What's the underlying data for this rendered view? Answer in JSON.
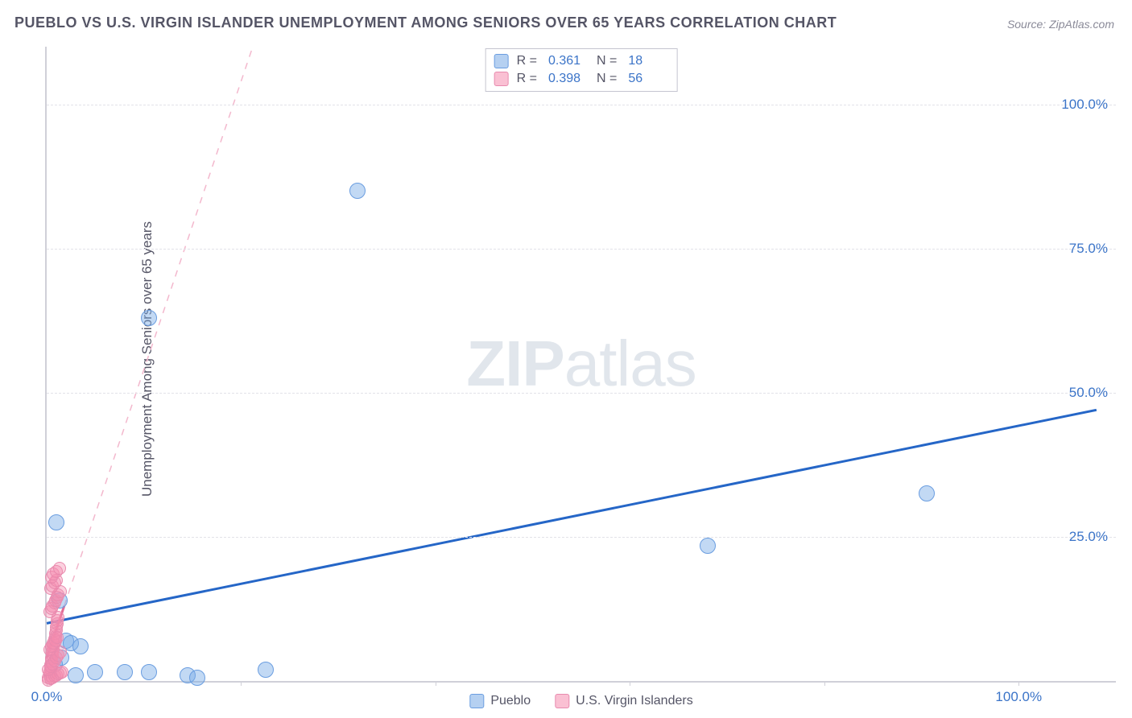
{
  "title": "PUEBLO VS U.S. VIRGIN ISLANDER UNEMPLOYMENT AMONG SENIORS OVER 65 YEARS CORRELATION CHART",
  "source": "Source: ZipAtlas.com",
  "ylabel": "Unemployment Among Seniors over 65 years",
  "watermark_bold": "ZIP",
  "watermark_light": "atlas",
  "chart": {
    "type": "scatter",
    "background_color": "#ffffff",
    "grid_color": "#e2e2e8",
    "axis_color": "#d0d0d8",
    "tick_color": "#3b74c8",
    "label_color": "#555566",
    "title_fontsize": 18,
    "label_fontsize": 17,
    "tick_fontsize": 17,
    "xlim": [
      0,
      110
    ],
    "ylim": [
      0,
      110
    ],
    "yticks": [
      {
        "value": 25,
        "label": "25.0%"
      },
      {
        "value": 50,
        "label": "50.0%"
      },
      {
        "value": 75,
        "label": "75.0%"
      },
      {
        "value": 100,
        "label": "100.0%"
      }
    ],
    "xticks": [
      {
        "value": 0,
        "label": "0.0%"
      },
      {
        "value": 20,
        "label": ""
      },
      {
        "value": 40,
        "label": ""
      },
      {
        "value": 60,
        "label": ""
      },
      {
        "value": 80,
        "label": ""
      },
      {
        "value": 100,
        "label": "100.0%"
      }
    ],
    "series": [
      {
        "name": "Pueblo",
        "color_fill": "rgba(120,170,230,0.45)",
        "color_stroke": "#6a9de0",
        "marker_radius": 10,
        "points": [
          {
            "x": 1.0,
            "y": 27.5
          },
          {
            "x": 1.3,
            "y": 14.0
          },
          {
            "x": 2.0,
            "y": 7.0
          },
          {
            "x": 2.5,
            "y": 6.5
          },
          {
            "x": 3.0,
            "y": 1.0
          },
          {
            "x": 3.5,
            "y": 6.0
          },
          {
            "x": 5.0,
            "y": 1.5
          },
          {
            "x": 8.0,
            "y": 1.5
          },
          {
            "x": 10.5,
            "y": 1.5
          },
          {
            "x": 14.5,
            "y": 1.0
          },
          {
            "x": 15.5,
            "y": 0.5
          },
          {
            "x": 22.5,
            "y": 2.0
          },
          {
            "x": 10.5,
            "y": 63.0
          },
          {
            "x": 32.0,
            "y": 85.0
          },
          {
            "x": 68.0,
            "y": 23.5
          },
          {
            "x": 90.5,
            "y": 32.5
          },
          {
            "x": 1.5,
            "y": 4.0
          },
          {
            "x": 0.8,
            "y": 3.0
          }
        ],
        "trend": {
          "style": "solid",
          "color": "#2566c7",
          "width": 3,
          "x1": 0,
          "y1": 10.0,
          "x2": 108,
          "y2": 47.0
        }
      },
      {
        "name": "U.S. Virgin Islanders",
        "color_fill": "rgba(245,140,175,0.40)",
        "color_stroke": "#e88aae",
        "marker_radius": 8,
        "points": [
          {
            "x": 0.2,
            "y": 0.5
          },
          {
            "x": 0.3,
            "y": 1.0
          },
          {
            "x": 0.3,
            "y": 1.6
          },
          {
            "x": 0.4,
            "y": 2.1
          },
          {
            "x": 0.4,
            "y": 2.8
          },
          {
            "x": 0.5,
            "y": 3.3
          },
          {
            "x": 0.5,
            "y": 3.9
          },
          {
            "x": 0.6,
            "y": 4.4
          },
          {
            "x": 0.6,
            "y": 5.0
          },
          {
            "x": 0.7,
            "y": 5.5
          },
          {
            "x": 0.7,
            "y": 6.1
          },
          {
            "x": 0.8,
            "y": 6.6
          },
          {
            "x": 0.8,
            "y": 7.2
          },
          {
            "x": 0.9,
            "y": 7.7
          },
          {
            "x": 0.9,
            "y": 8.3
          },
          {
            "x": 1.0,
            "y": 8.8
          },
          {
            "x": 1.0,
            "y": 9.4
          },
          {
            "x": 1.1,
            "y": 9.9
          },
          {
            "x": 1.1,
            "y": 10.5
          },
          {
            "x": 1.2,
            "y": 11.0
          },
          {
            "x": 0.3,
            "y": 12.0
          },
          {
            "x": 0.5,
            "y": 12.5
          },
          {
            "x": 0.6,
            "y": 13.0
          },
          {
            "x": 0.8,
            "y": 13.5
          },
          {
            "x": 0.9,
            "y": 14.0
          },
          {
            "x": 1.1,
            "y": 14.5
          },
          {
            "x": 1.2,
            "y": 15.0
          },
          {
            "x": 1.4,
            "y": 15.5
          },
          {
            "x": 0.4,
            "y": 16.0
          },
          {
            "x": 0.6,
            "y": 16.5
          },
          {
            "x": 0.8,
            "y": 17.0
          },
          {
            "x": 1.0,
            "y": 17.5
          },
          {
            "x": 0.5,
            "y": 18.0
          },
          {
            "x": 0.7,
            "y": 18.5
          },
          {
            "x": 1.0,
            "y": 19.0
          },
          {
            "x": 1.3,
            "y": 19.5
          },
          {
            "x": 0.2,
            "y": 0.2
          },
          {
            "x": 0.4,
            "y": 0.4
          },
          {
            "x": 0.6,
            "y": 0.6
          },
          {
            "x": 0.8,
            "y": 0.8
          },
          {
            "x": 1.0,
            "y": 1.0
          },
          {
            "x": 1.2,
            "y": 1.2
          },
          {
            "x": 1.4,
            "y": 1.4
          },
          {
            "x": 1.6,
            "y": 1.6
          },
          {
            "x": 0.2,
            "y": 2.0
          },
          {
            "x": 0.4,
            "y": 2.5
          },
          {
            "x": 0.6,
            "y": 3.0
          },
          {
            "x": 0.8,
            "y": 3.5
          },
          {
            "x": 1.0,
            "y": 4.0
          },
          {
            "x": 1.2,
            "y": 4.5
          },
          {
            "x": 1.4,
            "y": 5.0
          },
          {
            "x": 0.3,
            "y": 5.5
          },
          {
            "x": 0.5,
            "y": 6.0
          },
          {
            "x": 0.7,
            "y": 6.5
          },
          {
            "x": 0.9,
            "y": 7.0
          },
          {
            "x": 1.1,
            "y": 7.5
          }
        ],
        "trend": {
          "style": "solid",
          "color": "#e36a95",
          "width": 3,
          "x1": 0,
          "y1": 4.0,
          "x2": 1.8,
          "y2": 13.0
        },
        "trend_dashed": {
          "style": "dashed",
          "color": "#f3b8cd",
          "width": 1.5,
          "x1": 1.8,
          "y1": 13.0,
          "x2": 21.2,
          "y2": 110.0
        }
      }
    ],
    "legend_top": [
      {
        "swatch": "blue",
        "r_label": "R =",
        "r_value": "0.361",
        "n_label": "N =",
        "n_value": "18"
      },
      {
        "swatch": "pink",
        "r_label": "R =",
        "r_value": "0.398",
        "n_label": "N =",
        "n_value": "56"
      }
    ],
    "legend_bottom": [
      {
        "swatch": "blue",
        "label": "Pueblo"
      },
      {
        "swatch": "pink",
        "label": "U.S. Virgin Islanders"
      }
    ]
  }
}
